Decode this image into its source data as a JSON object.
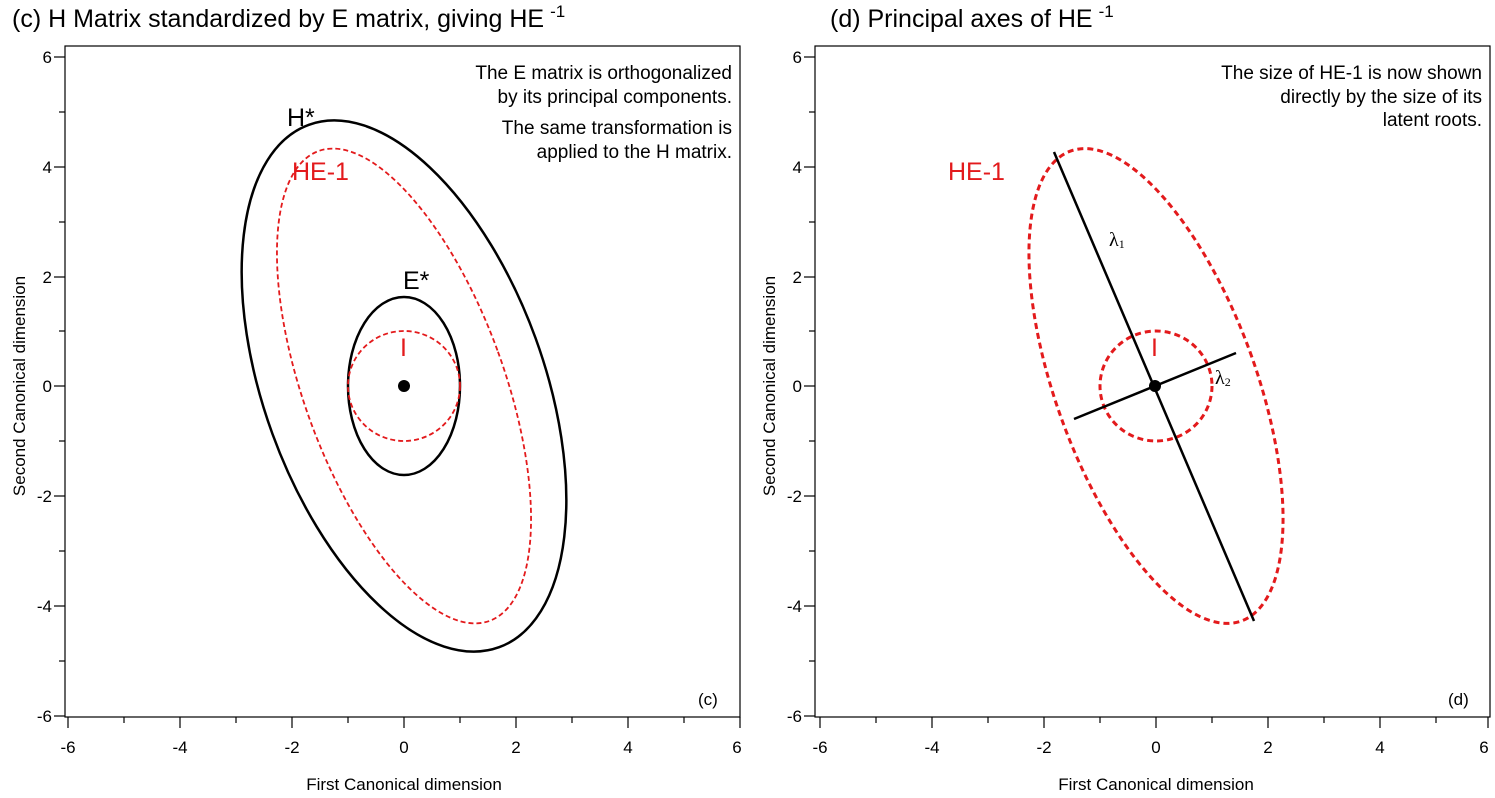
{
  "panels": [
    {
      "title": "(c) H Matrix standardized by E matrix, giving HE",
      "title_sup": "-1",
      "xlabel": "First Canonical dimension",
      "ylabel": "Second Canonical dimension",
      "xticks": [
        "-6",
        "-4",
        "-2",
        "0",
        "2",
        "4",
        "6"
      ],
      "yticks": [
        "6",
        "4",
        "2",
        "0",
        "-2",
        "-4",
        "-6"
      ],
      "notes": [
        "The E matrix is orthogonalized",
        "by its principal components.",
        "The same transformation is",
        "applied to the H matrix."
      ],
      "labels": {
        "hstar": "H*",
        "he1": "HE-1",
        "estar": "E*",
        "ident": "I"
      },
      "corner": "(c)"
    },
    {
      "title": "(d) Principal axes of HE",
      "title_sup": "-1",
      "xlabel": "First Canonical dimension",
      "ylabel": "Second Canonical dimension",
      "xticks": [
        "-6",
        "-4",
        "-2",
        "0",
        "2",
        "4",
        "6"
      ],
      "yticks": [
        "6",
        "4",
        "2",
        "0",
        "-2",
        "-4",
        "-6"
      ],
      "notes": [
        "The size of HE-1 is now shown",
        "directly by the size of its",
        "latent roots."
      ],
      "labels": {
        "he1": "HE-1",
        "ident": "I",
        "lambda1": "λ",
        "lambda1_sub": "1",
        "lambda2": "λ",
        "lambda2_sub": "2"
      },
      "corner": "(d)"
    }
  ],
  "colors": {
    "black": "#000000",
    "red": "#e31a1c"
  }
}
